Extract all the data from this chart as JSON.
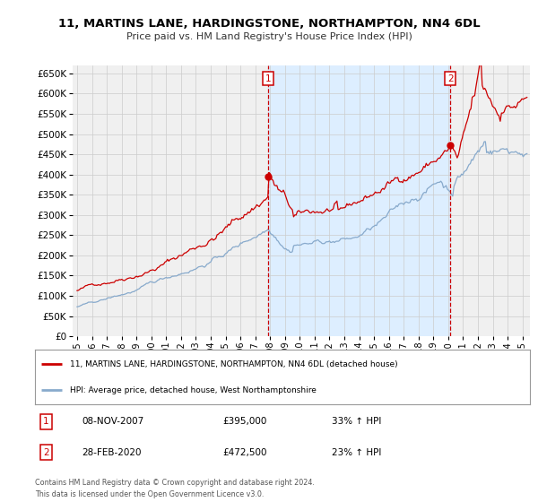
{
  "title": "11, MARTINS LANE, HARDINGSTONE, NORTHAMPTON, NN4 6DL",
  "subtitle": "Price paid vs. HM Land Registry's House Price Index (HPI)",
  "ytick_vals": [
    0,
    50000,
    100000,
    150000,
    200000,
    250000,
    300000,
    350000,
    400000,
    450000,
    500000,
    550000,
    600000,
    650000
  ],
  "ylim": [
    0,
    670000
  ],
  "xlim_start": 1994.7,
  "xlim_end": 2025.5,
  "grid_color": "#cccccc",
  "background_color": "#ffffff",
  "plot_bg_color": "#f0f0f0",
  "shade_color": "#ddeeff",
  "transaction1": {
    "date": "08-NOV-2007",
    "price": 395000,
    "pct": "33%",
    "label": "1",
    "x": 2007.85
  },
  "transaction2": {
    "date": "28-FEB-2020",
    "price": 472500,
    "pct": "23%",
    "label": "2",
    "x": 2020.15
  },
  "legend_line1": "11, MARTINS LANE, HARDINGSTONE, NORTHAMPTON, NN4 6DL (detached house)",
  "legend_line2": "HPI: Average price, detached house, West Northamptonshire",
  "footer": "Contains HM Land Registry data © Crown copyright and database right 2024.\nThis data is licensed under the Open Government Licence v3.0.",
  "red_color": "#cc0000",
  "blue_color": "#88aacc",
  "xticks": [
    1995,
    1996,
    1997,
    1998,
    1999,
    2000,
    2001,
    2002,
    2003,
    2004,
    2005,
    2006,
    2007,
    2008,
    2009,
    2010,
    2011,
    2012,
    2013,
    2014,
    2015,
    2016,
    2017,
    2018,
    2019,
    2020,
    2021,
    2022,
    2023,
    2024,
    2025
  ]
}
